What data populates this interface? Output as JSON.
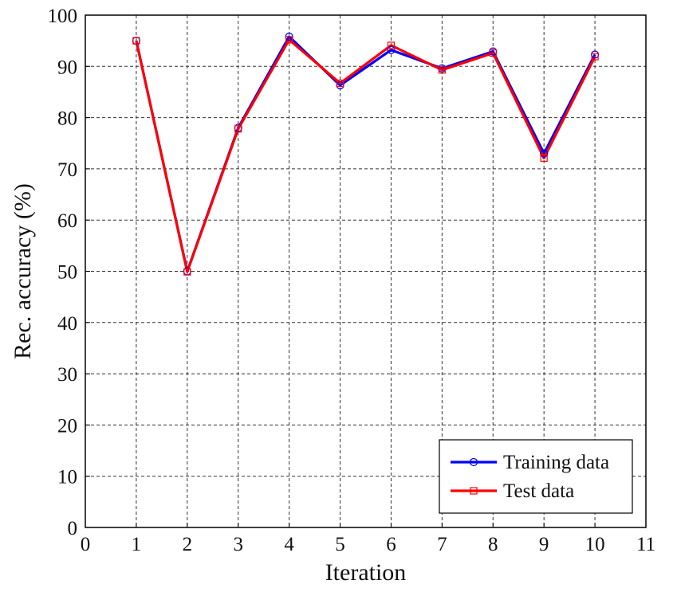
{
  "chart_data": {
    "type": "line",
    "xlabel": "Iteration",
    "ylabel": "Rec. accuracy (%)",
    "xlim": [
      0,
      11
    ],
    "ylim": [
      0,
      100
    ],
    "xticks": [
      0,
      1,
      2,
      3,
      4,
      5,
      6,
      7,
      8,
      9,
      10,
      11
    ],
    "yticks": [
      0,
      10,
      20,
      30,
      40,
      50,
      60,
      70,
      80,
      90,
      100
    ],
    "grid": true,
    "legend_position": "bottom-right",
    "x": [
      1,
      2,
      3,
      4,
      5,
      6,
      7,
      8,
      9,
      10
    ],
    "series": [
      {
        "name": "Training data",
        "color": "#0000ff",
        "marker": "circle",
        "values": [
          95.0,
          50.0,
          78.0,
          95.8,
          86.3,
          93.2,
          89.6,
          92.9,
          73.0,
          92.3
        ]
      },
      {
        "name": "Test data",
        "color": "#ff0000",
        "marker": "square",
        "values": [
          95.0,
          49.9,
          77.8,
          95.2,
          86.7,
          94.1,
          89.3,
          92.6,
          72.1,
          91.9
        ]
      }
    ]
  }
}
